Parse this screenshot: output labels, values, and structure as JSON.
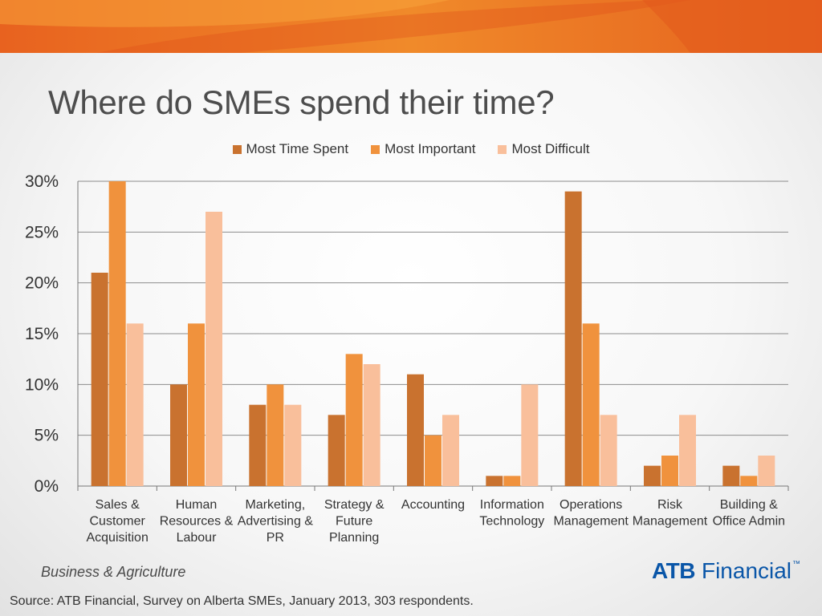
{
  "slide": {
    "title": "Where do SMEs spend their time?",
    "footer_label": "Business & Agriculture",
    "logo": {
      "brand": "ATB",
      "word": "Financial",
      "tm": "™"
    },
    "source": "Source:  ATB Financial, Survey on Alberta SMEs, January 2013, 303 respondents.",
    "colors": {
      "banner_dark": "#e05a1c",
      "banner_light": "#f4962e",
      "grid": "#8c8c8c"
    }
  },
  "chart_data": {
    "type": "bar",
    "title": "Where do SMEs spend their time?",
    "xlabel": "",
    "ylabel": "",
    "ylim": [
      0,
      30
    ],
    "yticks": [
      0,
      5,
      10,
      15,
      20,
      25,
      30
    ],
    "ytick_labels": [
      "0%",
      "5%",
      "10%",
      "15%",
      "20%",
      "25%",
      "30%"
    ],
    "grid": true,
    "legend_position": "top",
    "categories": [
      [
        "Sales &",
        "Customer",
        "Acquisition"
      ],
      [
        "Human",
        "Resources &",
        "Labour"
      ],
      [
        "Marketing,",
        "Advertising &",
        "PR"
      ],
      [
        "Strategy &",
        "Future",
        "Planning"
      ],
      [
        "Accounting"
      ],
      [
        "Information",
        "Technology"
      ],
      [
        "Operations",
        "Management"
      ],
      [
        "Risk",
        "Management"
      ],
      [
        "Building &",
        "Office Admin"
      ]
    ],
    "series": [
      {
        "name": "Most Time Spent",
        "color": "#c9722f",
        "values": [
          21,
          10,
          8,
          7,
          11,
          1,
          29,
          2,
          2
        ]
      },
      {
        "name": "Most Important",
        "color": "#f0923d",
        "values": [
          30,
          16,
          10,
          13,
          5,
          1,
          16,
          3,
          1
        ]
      },
      {
        "name": "Most Difficult",
        "color": "#f9bf9b",
        "values": [
          16,
          27,
          8,
          12,
          7,
          10,
          7,
          7,
          3
        ]
      }
    ]
  }
}
